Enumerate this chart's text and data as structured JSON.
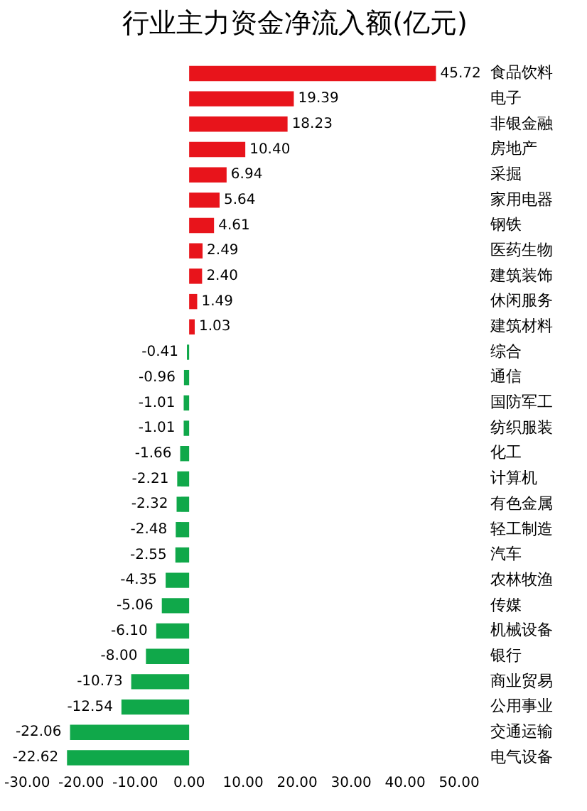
{
  "chart_data": {
    "type": "bar",
    "orientation": "horizontal",
    "title": "行业主力资金净流入额(亿元)",
    "categories": [
      "食品饮料",
      "电子",
      "非银金融",
      "房地产",
      "采掘",
      "家用电器",
      "钢铁",
      "医药生物",
      "建筑装饰",
      "休闲服务",
      "建筑材料",
      "综合",
      "通信",
      "国防军工",
      "纺织服装",
      "化工",
      "计算机",
      "有色金属",
      "轻工制造",
      "汽车",
      "农林牧渔",
      "传媒",
      "机械设备",
      "银行",
      "商业贸易",
      "公用事业",
      "交通运输",
      "电气设备"
    ],
    "values": [
      45.72,
      19.39,
      18.23,
      10.4,
      6.94,
      5.64,
      4.61,
      2.49,
      2.4,
      1.49,
      1.03,
      -0.41,
      -0.96,
      -1.01,
      -1.01,
      -1.66,
      -2.21,
      -2.32,
      -2.48,
      -2.55,
      -4.35,
      -5.06,
      -6.1,
      -8.0,
      -10.73,
      -12.54,
      -22.06,
      -22.62
    ],
    "colors": [
      "#e8141b",
      "#e8141b",
      "#e8141b",
      "#e8141b",
      "#e8141b",
      "#e8141b",
      "#e8141b",
      "#e8141b",
      "#e8141b",
      "#e8141b",
      "#e8141b",
      "#10a84a",
      "#10a84a",
      "#10a84a",
      "#10a84a",
      "#10a84a",
      "#10a84a",
      "#10a84a",
      "#10a84a",
      "#10a84a",
      "#10a84a",
      "#10a84a",
      "#10a84a",
      "#10a84a",
      "#10a84a",
      "#10a84a",
      "#10a84a",
      "#10a84a"
    ],
    "value_labels": [
      "45.72",
      "19.39",
      "18.23",
      "10.40",
      "6.94",
      "5.64",
      "4.61",
      "2.49",
      "2.40",
      "1.49",
      "1.03",
      "-0.41",
      "-0.96",
      "-1.01",
      "-1.01",
      "-1.66",
      "-2.21",
      "-2.32",
      "-2.48",
      "-2.55",
      "-4.35",
      "-5.06",
      "-6.10",
      "-8.00",
      "-10.73",
      "-12.54",
      "-22.06",
      "-22.62"
    ],
    "xlim": [
      -30,
      50
    ],
    "xticks": [
      {
        "value": -30,
        "label": "-30.00"
      },
      {
        "value": -20,
        "label": "-20.00"
      },
      {
        "value": -10,
        "label": "-10.00"
      },
      {
        "value": 0,
        "label": "0.00"
      },
      {
        "value": 10,
        "label": "10.00"
      },
      {
        "value": 20,
        "label": "20.00"
      },
      {
        "value": 30,
        "label": "30.00"
      },
      {
        "value": 40,
        "label": "40.00"
      },
      {
        "value": 50,
        "label": "50.00"
      }
    ],
    "grid": false,
    "legend": false
  }
}
